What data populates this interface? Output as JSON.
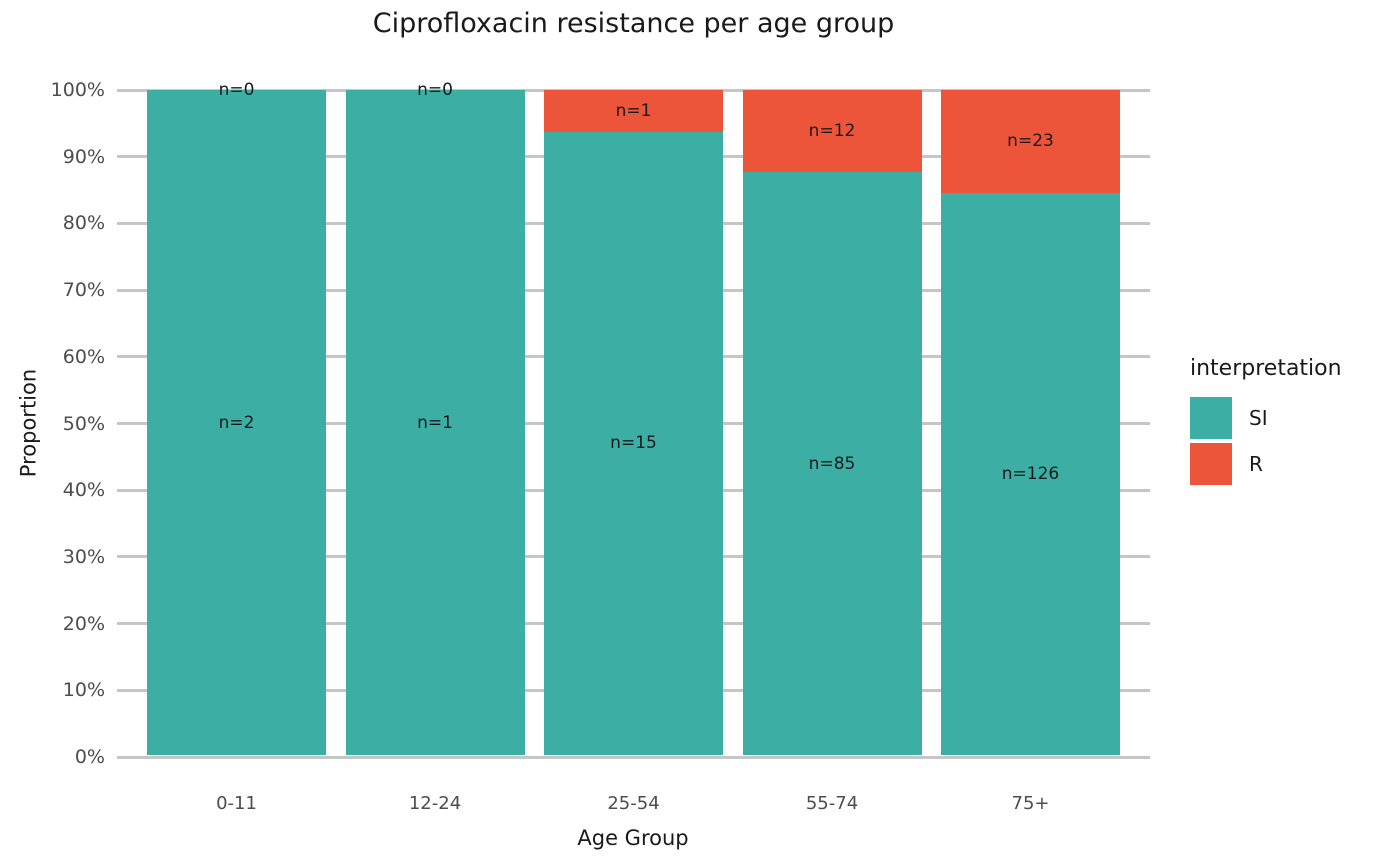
{
  "chart_data": {
    "type": "bar",
    "variant": "stacked-percent",
    "title": "Ciprofloxacin resistance per age group",
    "xlabel": "Age Group",
    "ylabel": "Proportion",
    "categories": [
      "0-11",
      "12-24",
      "25-54",
      "55-74",
      "75+"
    ],
    "series": [
      {
        "name": "SI",
        "color": "#3CAEA3",
        "counts": [
          2,
          1,
          15,
          85,
          126
        ],
        "labels": [
          "n=2",
          "n=1",
          "n=15",
          "n=85",
          "n=126"
        ]
      },
      {
        "name": "R",
        "color": "#ED553B",
        "counts": [
          0,
          0,
          1,
          12,
          23
        ],
        "labels": [
          "n=0",
          "n=0",
          "n=1",
          "n=12",
          "n=23"
        ]
      }
    ],
    "percent_resistant": [
      0,
      0,
      6.25,
      12.37,
      15.44
    ],
    "ylim": [
      0,
      100
    ],
    "yticks": [
      {
        "value": 0,
        "label": "0%"
      },
      {
        "value": 10,
        "label": "10%"
      },
      {
        "value": 20,
        "label": "20%"
      },
      {
        "value": 30,
        "label": "30%"
      },
      {
        "value": 40,
        "label": "40%"
      },
      {
        "value": 50,
        "label": "50%"
      },
      {
        "value": 60,
        "label": "60%"
      },
      {
        "value": 70,
        "label": "70%"
      },
      {
        "value": 80,
        "label": "80%"
      },
      {
        "value": 90,
        "label": "90%"
      },
      {
        "value": 100,
        "label": "100%"
      }
    ],
    "grid": true,
    "legend_position": "right"
  },
  "legend": {
    "title": "interpretation",
    "items": [
      {
        "label": "SI",
        "color": "#3CAEA3"
      },
      {
        "label": "R",
        "color": "#ED553B"
      }
    ]
  },
  "colors": {
    "background": "#FFFFFF",
    "grid": "#C6C6C6",
    "axis_text": "#4D4D4D",
    "bar_label_text": "#1A1A1A",
    "si": "#3CAEA3",
    "r": "#ED553B"
  }
}
